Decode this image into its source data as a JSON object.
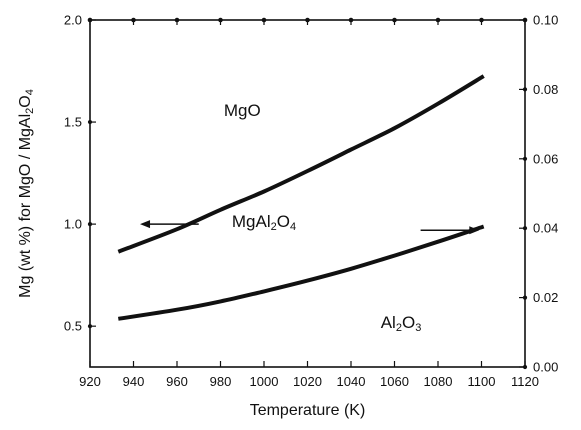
{
  "chart_data": {
    "type": "line",
    "title": "",
    "xlabel": "Temperature (K)",
    "ylabel_left": {
      "text": "Mg (wt %) for MgO / MgAl",
      "sub1": "2",
      "mid": "O",
      "sub2": "4"
    },
    "ylabel_right": "",
    "xlim": [
      920,
      1120
    ],
    "ylim_left": [
      0.3,
      2.0
    ],
    "ylim_right": [
      0.0,
      0.1
    ],
    "x_ticks": [
      "920",
      "940",
      "960",
      "980",
      "1000",
      "1020",
      "1040",
      "1060",
      "1080",
      "1100",
      "1120"
    ],
    "y_ticks_left": [
      "0.5",
      "1.0",
      "1.5",
      "2.0"
    ],
    "y_ticks_right": [
      "0.00",
      "0.02",
      "0.04",
      "0.06",
      "0.08",
      "0.10"
    ],
    "grid": false,
    "series": [
      {
        "axis": "left",
        "x": [
          933,
          960,
          980,
          1000,
          1020,
          1040,
          1060,
          1080,
          1101
        ],
        "y": [
          0.865,
          0.975,
          1.07,
          1.16,
          1.26,
          1.365,
          1.47,
          1.59,
          1.725
        ]
      },
      {
        "axis": "right",
        "x": [
          933,
          960,
          980,
          1000,
          1020,
          1040,
          1060,
          1080,
          1101
        ],
        "y": [
          0.0139,
          0.0165,
          0.0189,
          0.0218,
          0.0249,
          0.0283,
          0.0321,
          0.0361,
          0.0405
        ]
      }
    ],
    "region_labels": [
      {
        "text": "MgO",
        "x": 990,
        "y_left": 1.53
      },
      {
        "text": "MgAl",
        "sub1": "2",
        "mid": "O",
        "sub2": "4",
        "x": 1000,
        "y_left": 0.985
      },
      {
        "text": "Al",
        "sub1": "2",
        "mid": "O",
        "sub2": "3",
        "x": 1063,
        "y_left": 0.49
      }
    ],
    "arrows": [
      {
        "points_to": "left",
        "x_from": 970,
        "x_to": 943,
        "y_left": 1.0
      },
      {
        "points_to": "right",
        "x_from": 1072,
        "x_to": 1099,
        "y_left": 0.97
      }
    ]
  }
}
